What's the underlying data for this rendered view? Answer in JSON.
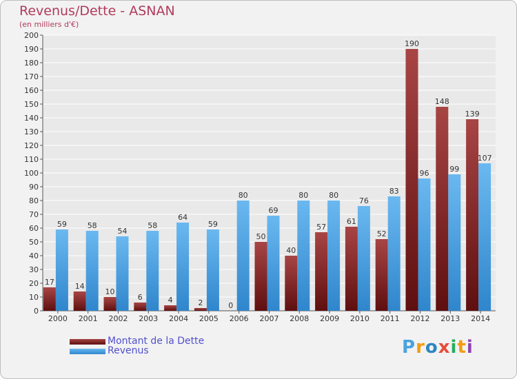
{
  "header": {
    "title": "Revenus/Dette - ASNAN",
    "subtitle": "(en milliers d'€)"
  },
  "legend": {
    "debt_label": "Montant de la Dette",
    "revenue_label": "Revenus"
  },
  "brand": {
    "letters": [
      "P",
      "r",
      "o",
      "x",
      "i",
      "t",
      "i"
    ],
    "colors": [
      "#4aa3df",
      "#f39c12",
      "#2e86c1",
      "#e74c3c",
      "#27ae60",
      "#f39c12",
      "#8e44ad"
    ]
  },
  "colors": {
    "debt": "#7a1a1a",
    "debt_light": "#a84545",
    "revenue": "#4ea6e6",
    "revenue_light": "#7cc0f0",
    "background": "#f2f2f2",
    "grid": "#ffffff"
  },
  "chart_data": {
    "type": "bar",
    "categories": [
      "2000",
      "2001",
      "2002",
      "2003",
      "2004",
      "2005",
      "2006",
      "2007",
      "2008",
      "2009",
      "2010",
      "2011",
      "2012",
      "2013",
      "2014"
    ],
    "series": [
      {
        "name": "Montant de la Dette",
        "values": [
          17,
          14,
          10,
          6,
          4,
          2,
          0,
          50,
          40,
          57,
          61,
          52,
          190,
          148,
          139
        ]
      },
      {
        "name": "Revenus",
        "values": [
          59,
          58,
          54,
          58,
          64,
          59,
          80,
          69,
          80,
          80,
          76,
          83,
          96,
          99,
          107
        ]
      }
    ],
    "ylim": [
      0,
      200
    ],
    "ytick_step": 10,
    "grid": true,
    "legend_position": "bottom-left"
  }
}
